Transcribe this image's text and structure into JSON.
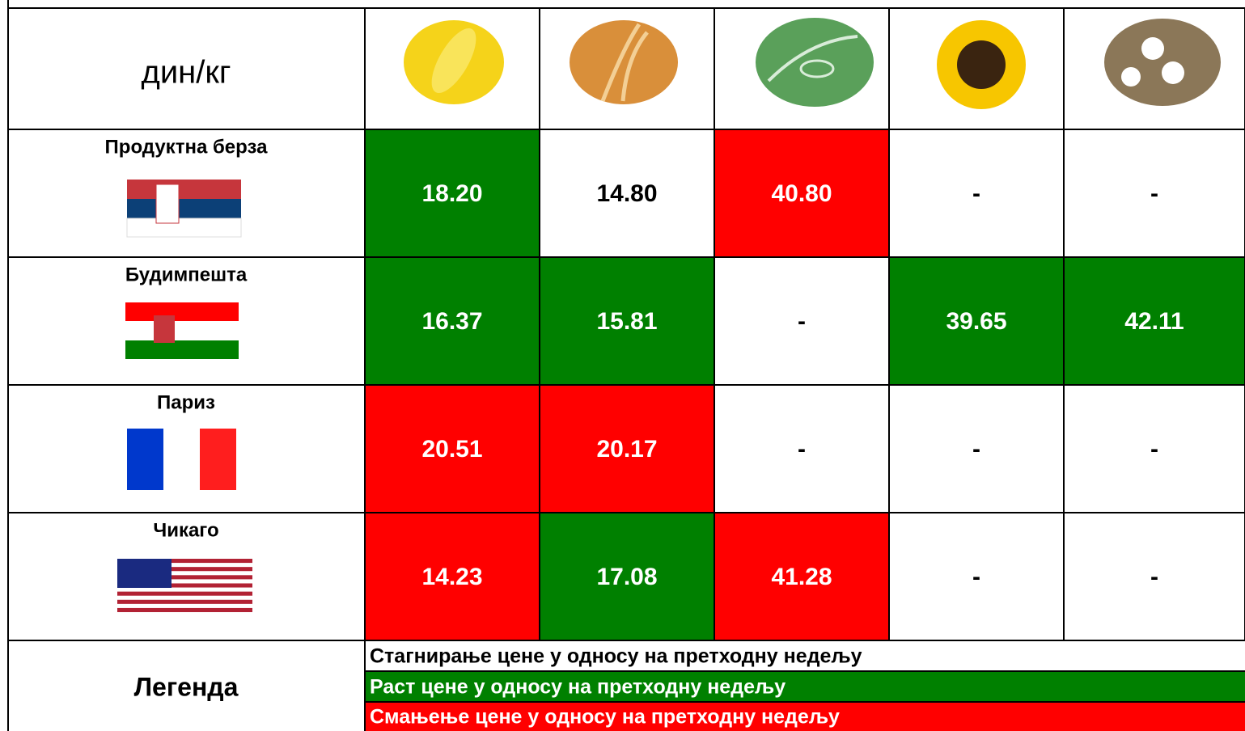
{
  "table": {
    "header": "дин/кг",
    "rows": [
      {
        "market": "Продуктна берза",
        "cells": [
          {
            "text": "18.20",
            "color": "#008000"
          },
          {
            "text": "14.80",
            "color": "#ffffff"
          },
          {
            "text": "40.80",
            "color": "#ff0000"
          },
          {
            "text": "-",
            "color": "#ffffff"
          },
          {
            "text": "-",
            "color": "#ffffff"
          }
        ]
      },
      {
        "market": "Будимпешта",
        "cells": [
          {
            "text": "16.37",
            "color": "#008000"
          },
          {
            "text": "15.81",
            "color": "#008000"
          },
          {
            "text": "-",
            "color": "#ffffff"
          },
          {
            "text": "39.65",
            "color": "#008000"
          },
          {
            "text": "42.11",
            "color": "#008000"
          }
        ]
      },
      {
        "market": "Париз",
        "cells": [
          {
            "text": "20.51",
            "color": "#ff0000"
          },
          {
            "text": "20.17",
            "color": "#ff0000"
          },
          {
            "text": "-",
            "color": "#ffffff"
          },
          {
            "text": "-",
            "color": "#ffffff"
          },
          {
            "text": "-",
            "color": "#ffffff"
          }
        ]
      },
      {
        "market": "Чикаго",
        "cells": [
          {
            "text": "14.23",
            "color": "#ff0000"
          },
          {
            "text": "17.08",
            "color": "#008000"
          },
          {
            "text": "41.28",
            "color": "#ff0000"
          },
          {
            "text": "-",
            "color": "#ffffff"
          },
          {
            "text": "-",
            "color": "#ffffff"
          }
        ]
      }
    ]
  },
  "legend": {
    "title": "Легенда",
    "items": [
      {
        "text": "Стагнирање цене у односу на претходну недељу",
        "color": "#ffffff"
      },
      {
        "text": "Раст цене у односу на претходну недељу",
        "color": "#008000"
      },
      {
        "text": "Смањење цене у односу на претходну недељу",
        "color": "#ff0000"
      }
    ]
  }
}
